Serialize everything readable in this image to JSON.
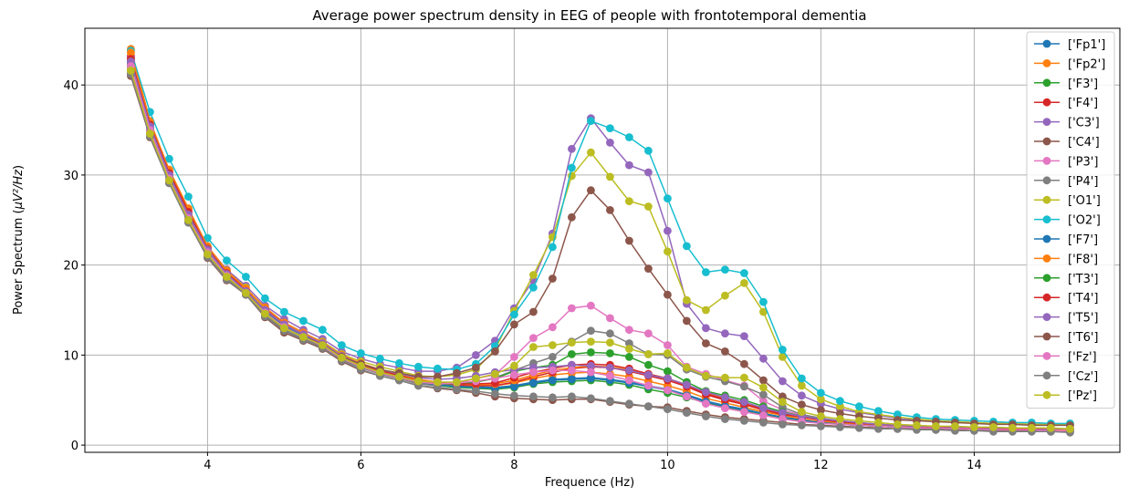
{
  "chart_data": {
    "type": "line",
    "title": "Average power spectrum density in EEG of people with frontotemporal dementia",
    "xlabel": "Frequence (Hz)",
    "ylabel_prefix": "Power Spectrum (",
    "ylabel_math": "μV²/Hz",
    "ylabel_suffix": ")",
    "xlim": [
      2.4,
      15.9
    ],
    "ylim": [
      -0.8,
      46.3
    ],
    "xticks": [
      4,
      6,
      8,
      10,
      12,
      14
    ],
    "yticks": [
      0,
      10,
      20,
      30,
      40
    ],
    "grid": true,
    "legend_position": "top-right",
    "x": [
      3.0,
      3.25,
      3.5,
      3.75,
      4.0,
      4.25,
      4.5,
      4.75,
      5.0,
      5.25,
      5.5,
      5.75,
      6.0,
      6.25,
      6.5,
      6.75,
      7.0,
      7.25,
      7.5,
      7.75,
      8.0,
      8.25,
      8.5,
      8.75,
      9.0,
      9.25,
      9.5,
      9.75,
      10.0,
      10.25,
      10.5,
      10.75,
      11.0,
      11.25,
      11.5,
      11.75,
      12.0,
      12.25,
      12.5,
      12.75,
      13.0,
      13.25,
      13.5,
      13.75,
      14.0,
      14.25,
      14.5,
      14.75,
      15.0,
      15.25
    ],
    "series": [
      {
        "name": "['Fp1']",
        "color": "#1f77b4",
        "values": [
          42.8,
          35.5,
          30.0,
          25.6,
          21.8,
          19.0,
          17.0,
          14.9,
          13.3,
          12.2,
          11.2,
          9.8,
          8.9,
          8.2,
          7.7,
          7.1,
          6.8,
          6.6,
          6.5,
          6.4,
          6.6,
          7.0,
          7.3,
          7.4,
          7.5,
          7.3,
          7.0,
          6.6,
          6.2,
          5.6,
          4.9,
          4.4,
          4.0,
          3.5,
          3.1,
          2.8,
          2.5,
          2.4,
          2.2,
          2.1,
          2.0,
          1.9,
          1.9,
          1.8,
          1.8,
          1.7,
          1.7,
          1.7,
          1.6,
          1.6
        ]
      },
      {
        "name": "['Fp2']",
        "color": "#ff7f0e",
        "values": [
          44.0,
          36.0,
          30.5,
          26.2,
          22.0,
          19.3,
          17.3,
          15.2,
          13.5,
          12.4,
          11.3,
          9.9,
          9.0,
          8.3,
          7.8,
          7.2,
          6.9,
          6.7,
          6.6,
          6.6,
          6.9,
          7.4,
          7.8,
          8.0,
          8.1,
          7.9,
          7.6,
          7.1,
          6.6,
          6.0,
          5.2,
          4.7,
          4.2,
          3.7,
          3.3,
          2.9,
          2.6,
          2.5,
          2.3,
          2.2,
          2.1,
          2.0,
          1.9,
          1.9,
          1.8,
          1.8,
          1.8,
          1.7,
          1.7,
          1.7
        ]
      },
      {
        "name": "['F3']",
        "color": "#2ca02c",
        "values": [
          42.0,
          35.0,
          29.6,
          25.2,
          21.4,
          18.7,
          16.9,
          14.6,
          13.0,
          12.0,
          11.0,
          9.6,
          8.7,
          8.0,
          7.5,
          6.9,
          6.6,
          6.4,
          6.3,
          6.2,
          6.4,
          6.8,
          7.0,
          7.1,
          7.2,
          7.0,
          6.7,
          6.2,
          5.8,
          5.3,
          4.7,
          4.2,
          3.8,
          3.4,
          3.0,
          2.7,
          2.5,
          2.3,
          2.2,
          2.1,
          2.0,
          1.9,
          1.8,
          1.8,
          1.8,
          1.7,
          1.7,
          1.6,
          1.6,
          1.6
        ]
      },
      {
        "name": "['F4']",
        "color": "#d62728",
        "values": [
          43.2,
          35.8,
          30.4,
          26.0,
          21.9,
          19.2,
          17.2,
          15.1,
          13.4,
          12.3,
          11.3,
          9.9,
          8.9,
          8.3,
          7.8,
          7.2,
          6.9,
          6.7,
          6.6,
          6.6,
          7.0,
          7.6,
          8.1,
          8.5,
          8.7,
          8.6,
          8.2,
          7.7,
          7.2,
          6.5,
          5.6,
          5.0,
          4.5,
          3.9,
          3.4,
          3.1,
          2.8,
          2.6,
          2.4,
          2.3,
          2.2,
          2.1,
          2.0,
          2.0,
          1.9,
          1.9,
          1.8,
          1.8,
          1.8,
          1.8
        ]
      },
      {
        "name": "['C3']",
        "color": "#9467bd",
        "values": [
          43.0,
          35.7,
          30.2,
          25.8,
          22.0,
          19.5,
          17.7,
          15.5,
          14.0,
          12.8,
          11.8,
          10.4,
          9.6,
          9.0,
          8.6,
          8.2,
          8.2,
          8.6,
          10.0,
          11.6,
          15.2,
          18.3,
          23.5,
          32.9,
          36.3,
          33.6,
          31.1,
          30.3,
          23.8,
          15.7,
          13.0,
          12.4,
          12.1,
          9.6,
          7.1,
          5.5,
          4.6,
          4.0,
          3.6,
          3.3,
          3.0,
          2.8,
          2.7,
          2.6,
          2.5,
          2.4,
          2.4,
          2.3,
          2.3,
          2.3
        ]
      },
      {
        "name": "['C4']",
        "color": "#8c564b",
        "values": [
          41.0,
          34.2,
          29.1,
          24.8,
          20.8,
          18.3,
          16.7,
          14.2,
          12.5,
          11.6,
          10.7,
          9.3,
          8.3,
          7.7,
          7.2,
          6.6,
          6.3,
          6.1,
          5.8,
          5.4,
          5.2,
          5.1,
          5.0,
          5.1,
          5.1,
          4.8,
          4.5,
          4.3,
          4.2,
          3.8,
          3.4,
          3.1,
          2.9,
          2.7,
          2.5,
          2.3,
          2.2,
          2.1,
          2.0,
          1.9,
          1.8,
          1.8,
          1.7,
          1.7,
          1.6,
          1.6,
          1.6,
          1.6,
          1.5,
          1.5
        ]
      },
      {
        "name": "['P3']",
        "color": "#e377c2",
        "values": [
          42.4,
          35.3,
          29.8,
          25.4,
          21.5,
          18.9,
          17.0,
          14.8,
          13.2,
          12.2,
          11.2,
          9.8,
          8.9,
          8.2,
          7.6,
          7.0,
          6.8,
          6.9,
          7.4,
          7.8,
          9.8,
          11.9,
          13.1,
          15.2,
          15.5,
          14.1,
          12.8,
          12.4,
          11.1,
          8.7,
          7.9,
          7.2,
          6.6,
          4.9,
          3.9,
          3.3,
          2.9,
          2.6,
          2.4,
          2.3,
          2.2,
          2.1,
          2.0,
          2.0,
          1.9,
          1.9,
          1.9,
          1.8,
          1.8,
          1.8
        ]
      },
      {
        "name": "['P4']",
        "color": "#7f7f7f",
        "values": [
          41.3,
          34.5,
          29.2,
          24.9,
          21.0,
          18.5,
          16.8,
          14.4,
          12.8,
          11.8,
          10.9,
          9.5,
          8.6,
          7.9,
          7.4,
          6.8,
          6.6,
          6.7,
          7.0,
          7.5,
          8.3,
          9.1,
          9.8,
          11.5,
          12.7,
          12.4,
          11.3,
          10.1,
          10.0,
          8.4,
          7.6,
          7.1,
          6.5,
          5.6,
          4.2,
          3.4,
          3.0,
          2.7,
          2.5,
          2.3,
          2.2,
          2.1,
          2.0,
          2.0,
          1.9,
          1.9,
          1.9,
          1.8,
          1.8,
          1.8
        ]
      },
      {
        "name": "['O1']",
        "color": "#bcbd22",
        "values": [
          41.8,
          34.8,
          29.6,
          25.5,
          21.6,
          19.3,
          17.5,
          15.0,
          13.4,
          12.4,
          11.5,
          10.1,
          9.3,
          8.7,
          8.2,
          7.7,
          7.6,
          7.8,
          8.4,
          10.6,
          14.9,
          18.9,
          23.1,
          29.9,
          32.5,
          29.8,
          27.1,
          26.5,
          21.5,
          16.1,
          15.0,
          16.6,
          18.0,
          14.8,
          9.8,
          6.6,
          5.1,
          4.3,
          3.7,
          3.4,
          3.1,
          2.9,
          2.7,
          2.6,
          2.5,
          2.4,
          2.4,
          2.3,
          2.3,
          2.3
        ]
      },
      {
        "name": "['O2']",
        "color": "#17becf",
        "values": [
          43.8,
          37.0,
          31.8,
          27.6,
          23.0,
          20.5,
          18.7,
          16.3,
          14.8,
          13.8,
          12.8,
          11.1,
          10.2,
          9.6,
          9.1,
          8.7,
          8.5,
          8.4,
          9.0,
          11.0,
          14.5,
          17.5,
          22.0,
          30.8,
          36.0,
          35.2,
          34.2,
          32.7,
          27.4,
          22.1,
          19.2,
          19.5,
          19.1,
          15.9,
          10.6,
          7.4,
          5.8,
          4.9,
          4.3,
          3.8,
          3.4,
          3.1,
          2.9,
          2.8,
          2.7,
          2.6,
          2.5,
          2.5,
          2.4,
          2.4
        ]
      },
      {
        "name": "['F7']",
        "color": "#1f77b4",
        "values": [
          42.5,
          35.2,
          29.8,
          25.4,
          21.6,
          18.9,
          17.0,
          14.8,
          13.2,
          12.1,
          11.1,
          9.7,
          8.8,
          8.1,
          7.6,
          7.0,
          6.7,
          6.5,
          6.4,
          6.3,
          6.5,
          6.9,
          7.2,
          7.3,
          7.4,
          7.2,
          6.9,
          6.5,
          6.1,
          5.5,
          4.8,
          4.3,
          3.9,
          3.5,
          3.1,
          2.8,
          2.5,
          2.3,
          2.2,
          2.1,
          2.0,
          1.9,
          1.9,
          1.8,
          1.8,
          1.7,
          1.7,
          1.7,
          1.6,
          1.6
        ]
      },
      {
        "name": "['F8']",
        "color": "#ff7f0e",
        "values": [
          43.6,
          35.9,
          30.6,
          26.3,
          22.1,
          19.4,
          17.4,
          15.3,
          13.6,
          12.5,
          11.4,
          10.0,
          9.1,
          8.4,
          7.9,
          7.3,
          7.0,
          6.8,
          6.7,
          6.8,
          7.2,
          7.8,
          8.3,
          8.6,
          8.8,
          8.7,
          8.4,
          7.9,
          7.4,
          6.7,
          5.8,
          5.2,
          4.6,
          4.0,
          3.5,
          3.1,
          2.8,
          2.6,
          2.4,
          2.3,
          2.2,
          2.1,
          2.0,
          2.0,
          1.9,
          1.9,
          1.9,
          1.8,
          1.8,
          1.8
        ]
      },
      {
        "name": "['T3']",
        "color": "#2ca02c",
        "values": [
          42.2,
          35.1,
          29.7,
          25.3,
          21.5,
          18.8,
          16.9,
          14.7,
          13.1,
          12.0,
          11.0,
          9.6,
          8.7,
          8.1,
          7.6,
          7.0,
          6.8,
          6.8,
          7.0,
          7.4,
          8.2,
          8.6,
          8.9,
          10.1,
          10.3,
          10.2,
          9.8,
          8.9,
          8.2,
          7.0,
          6.0,
          5.5,
          5.0,
          4.3,
          3.7,
          3.2,
          2.9,
          2.6,
          2.4,
          2.3,
          2.2,
          2.1,
          2.0,
          2.0,
          1.9,
          1.9,
          1.8,
          1.8,
          1.8,
          1.8
        ]
      },
      {
        "name": "['T4']",
        "color": "#d62728",
        "values": [
          42.9,
          35.6,
          30.2,
          25.9,
          21.8,
          19.1,
          17.1,
          15.0,
          13.4,
          12.3,
          11.2,
          9.8,
          8.9,
          8.2,
          7.7,
          7.1,
          6.9,
          6.8,
          6.8,
          6.9,
          7.5,
          8.1,
          8.5,
          8.9,
          9.0,
          8.9,
          8.5,
          7.9,
          7.4,
          6.6,
          5.7,
          5.1,
          4.6,
          4.0,
          3.5,
          3.1,
          2.8,
          2.6,
          2.4,
          2.3,
          2.2,
          2.1,
          2.0,
          2.0,
          1.9,
          1.9,
          1.8,
          1.8,
          1.8,
          1.8
        ]
      },
      {
        "name": "['T5']",
        "color": "#9467bd",
        "values": [
          42.6,
          35.4,
          30.0,
          25.6,
          21.7,
          19.0,
          17.1,
          15.0,
          13.4,
          12.3,
          11.3,
          9.9,
          9.0,
          8.4,
          7.9,
          7.5,
          7.3,
          7.4,
          7.7,
          8.1,
          8.4,
          8.6,
          8.7,
          8.9,
          8.8,
          8.6,
          8.3,
          7.8,
          7.4,
          6.7,
          5.9,
          5.3,
          4.8,
          4.1,
          3.6,
          3.2,
          2.9,
          2.7,
          2.5,
          2.3,
          2.2,
          2.1,
          2.1,
          2.0,
          2.0,
          1.9,
          1.9,
          1.9,
          1.8,
          1.8
        ]
      },
      {
        "name": "['T6']",
        "color": "#8c564b",
        "values": [
          41.6,
          34.9,
          29.5,
          25.2,
          21.3,
          18.7,
          16.9,
          14.6,
          13.0,
          12.0,
          11.1,
          9.8,
          9.0,
          8.4,
          8.0,
          7.6,
          7.6,
          8.0,
          8.6,
          10.4,
          13.4,
          14.8,
          18.5,
          25.3,
          28.3,
          26.1,
          22.7,
          19.6,
          16.7,
          13.8,
          11.3,
          10.4,
          9.0,
          7.2,
          5.4,
          4.5,
          3.9,
          3.5,
          3.2,
          3.0,
          2.8,
          2.7,
          2.6,
          2.5,
          2.4,
          2.3,
          2.3,
          2.2,
          2.2,
          2.2
        ]
      },
      {
        "name": "['Fz']",
        "color": "#e377c2",
        "values": [
          42.1,
          35.0,
          29.6,
          25.2,
          21.4,
          18.8,
          16.9,
          14.7,
          13.1,
          12.0,
          11.0,
          9.6,
          8.7,
          8.0,
          7.5,
          7.0,
          6.8,
          6.9,
          7.1,
          7.4,
          7.8,
          8.1,
          8.3,
          8.3,
          8.1,
          7.7,
          7.2,
          6.6,
          6.1,
          5.4,
          4.6,
          4.1,
          3.7,
          3.3,
          2.9,
          2.6,
          2.4,
          2.3,
          2.2,
          2.1,
          2.0,
          1.9,
          1.9,
          1.8,
          1.8,
          1.7,
          1.7,
          1.7,
          1.6,
          1.6
        ]
      },
      {
        "name": "['Cz']",
        "color": "#7f7f7f",
        "values": [
          41.2,
          34.3,
          29.1,
          24.7,
          20.9,
          18.4,
          16.7,
          14.3,
          12.7,
          11.7,
          10.8,
          9.4,
          8.4,
          7.7,
          7.2,
          6.6,
          6.4,
          6.2,
          6.0,
          5.7,
          5.5,
          5.4,
          5.3,
          5.4,
          5.2,
          4.9,
          4.6,
          4.3,
          4.0,
          3.6,
          3.2,
          2.9,
          2.7,
          2.5,
          2.3,
          2.2,
          2.1,
          2.0,
          1.9,
          1.8,
          1.8,
          1.7,
          1.7,
          1.6,
          1.6,
          1.5,
          1.5,
          1.5,
          1.5,
          1.4
        ]
      },
      {
        "name": "['Pz']",
        "color": "#bcbd22",
        "values": [
          41.6,
          34.6,
          29.4,
          25.0,
          21.2,
          18.7,
          16.9,
          14.6,
          13.0,
          12.0,
          11.1,
          9.7,
          8.8,
          8.1,
          7.6,
          7.1,
          7.0,
          7.0,
          7.4,
          7.9,
          8.8,
          10.9,
          11.1,
          11.4,
          11.5,
          11.4,
          10.7,
          10.1,
          10.2,
          8.6,
          7.7,
          7.5,
          7.5,
          6.4,
          4.8,
          3.7,
          3.2,
          2.9,
          2.7,
          2.5,
          2.3,
          2.2,
          2.1,
          2.1,
          2.0,
          2.0,
          1.9,
          1.9,
          1.9,
          1.8
        ]
      }
    ]
  }
}
